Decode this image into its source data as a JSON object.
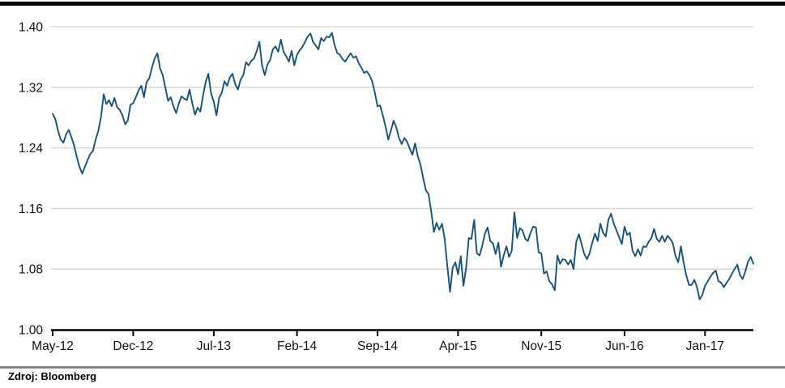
{
  "footer": {
    "source": "Zdroj: Bloomberg"
  },
  "chart_data": {
    "type": "line",
    "title": "",
    "xlabel": "",
    "ylabel": "",
    "ylim": [
      1.0,
      1.4
    ],
    "grid": true,
    "legend": false,
    "line_color": "#17527c",
    "grid_color": "#dadad3",
    "axis_color": "#000000",
    "y_ticks": [
      {
        "label": "1.40",
        "value": 1.4
      },
      {
        "label": "1.32",
        "value": 1.32
      },
      {
        "label": "1.24",
        "value": 1.24
      },
      {
        "label": "1.16",
        "value": 1.16
      },
      {
        "label": "1.08",
        "value": 1.08
      },
      {
        "label": "1.00",
        "value": 1.0
      }
    ],
    "x_ticks": [
      {
        "label": "May-12",
        "index": 0
      },
      {
        "label": "Dec-12",
        "index": 30
      },
      {
        "label": "Jul-13",
        "index": 60
      },
      {
        "label": "Feb-14",
        "index": 91
      },
      {
        "label": "Sep-14",
        "index": 121
      },
      {
        "label": "Apr-15",
        "index": 151
      },
      {
        "label": "Nov-15",
        "index": 182
      },
      {
        "label": "Jun-16",
        "index": 213
      },
      {
        "label": "Jan-17",
        "index": 243
      }
    ],
    "values": [
      1.285,
      1.278,
      1.263,
      1.251,
      1.247,
      1.258,
      1.264,
      1.254,
      1.243,
      1.228,
      1.215,
      1.206,
      1.215,
      1.224,
      1.232,
      1.236,
      1.251,
      1.262,
      1.281,
      1.311,
      1.298,
      1.303,
      1.295,
      1.306,
      1.294,
      1.29,
      1.283,
      1.271,
      1.276,
      1.297,
      1.299,
      1.307,
      1.316,
      1.322,
      1.307,
      1.327,
      1.332,
      1.346,
      1.358,
      1.365,
      1.345,
      1.336,
      1.319,
      1.302,
      1.307,
      1.295,
      1.286,
      1.299,
      1.308,
      1.305,
      1.303,
      1.317,
      1.299,
      1.284,
      1.293,
      1.288,
      1.309,
      1.327,
      1.338,
      1.312,
      1.301,
      1.283,
      1.306,
      1.313,
      1.328,
      1.322,
      1.333,
      1.338,
      1.324,
      1.317,
      1.33,
      1.336,
      1.353,
      1.349,
      1.355,
      1.358,
      1.368,
      1.38,
      1.349,
      1.336,
      1.35,
      1.356,
      1.37,
      1.374,
      1.367,
      1.383,
      1.367,
      1.361,
      1.354,
      1.368,
      1.349,
      1.363,
      1.369,
      1.373,
      1.38,
      1.387,
      1.391,
      1.38,
      1.375,
      1.37,
      1.385,
      1.381,
      1.387,
      1.386,
      1.392,
      1.376,
      1.365,
      1.363,
      1.357,
      1.354,
      1.36,
      1.365,
      1.359,
      1.361,
      1.352,
      1.346,
      1.339,
      1.341,
      1.336,
      1.328,
      1.313,
      1.295,
      1.296,
      1.283,
      1.268,
      1.251,
      1.263,
      1.276,
      1.267,
      1.253,
      1.245,
      1.253,
      1.248,
      1.239,
      1.231,
      1.246,
      1.229,
      1.218,
      1.2,
      1.184,
      1.179,
      1.156,
      1.129,
      1.141,
      1.132,
      1.14,
      1.12,
      1.084,
      1.05,
      1.082,
      1.089,
      1.073,
      1.097,
      1.058,
      1.082,
      1.121,
      1.12,
      1.145,
      1.101,
      1.098,
      1.111,
      1.127,
      1.135,
      1.117,
      1.114,
      1.1,
      1.115,
      1.083,
      1.098,
      1.11,
      1.096,
      1.104,
      1.155,
      1.121,
      1.134,
      1.131,
      1.12,
      1.117,
      1.128,
      1.136,
      1.135,
      1.102,
      1.101,
      1.074,
      1.077,
      1.064,
      1.06,
      1.052,
      1.098,
      1.087,
      1.093,
      1.092,
      1.086,
      1.092,
      1.08,
      1.116,
      1.126,
      1.113,
      1.1,
      1.093,
      1.101,
      1.115,
      1.127,
      1.117,
      1.14,
      1.128,
      1.123,
      1.145,
      1.153,
      1.14,
      1.131,
      1.122,
      1.113,
      1.136,
      1.125,
      1.128,
      1.104,
      1.097,
      1.106,
      1.098,
      1.11,
      1.109,
      1.116,
      1.121,
      1.133,
      1.12,
      1.116,
      1.124,
      1.116,
      1.124,
      1.12,
      1.114,
      1.097,
      1.089,
      1.11,
      1.089,
      1.072,
      1.059,
      1.059,
      1.066,
      1.056,
      1.04,
      1.046,
      1.058,
      1.064,
      1.07,
      1.075,
      1.078,
      1.064,
      1.062,
      1.056,
      1.062,
      1.067,
      1.074,
      1.08,
      1.086,
      1.072,
      1.067,
      1.077,
      1.09,
      1.096,
      1.087
    ],
    "source": "Zdroj: Bloomberg"
  }
}
